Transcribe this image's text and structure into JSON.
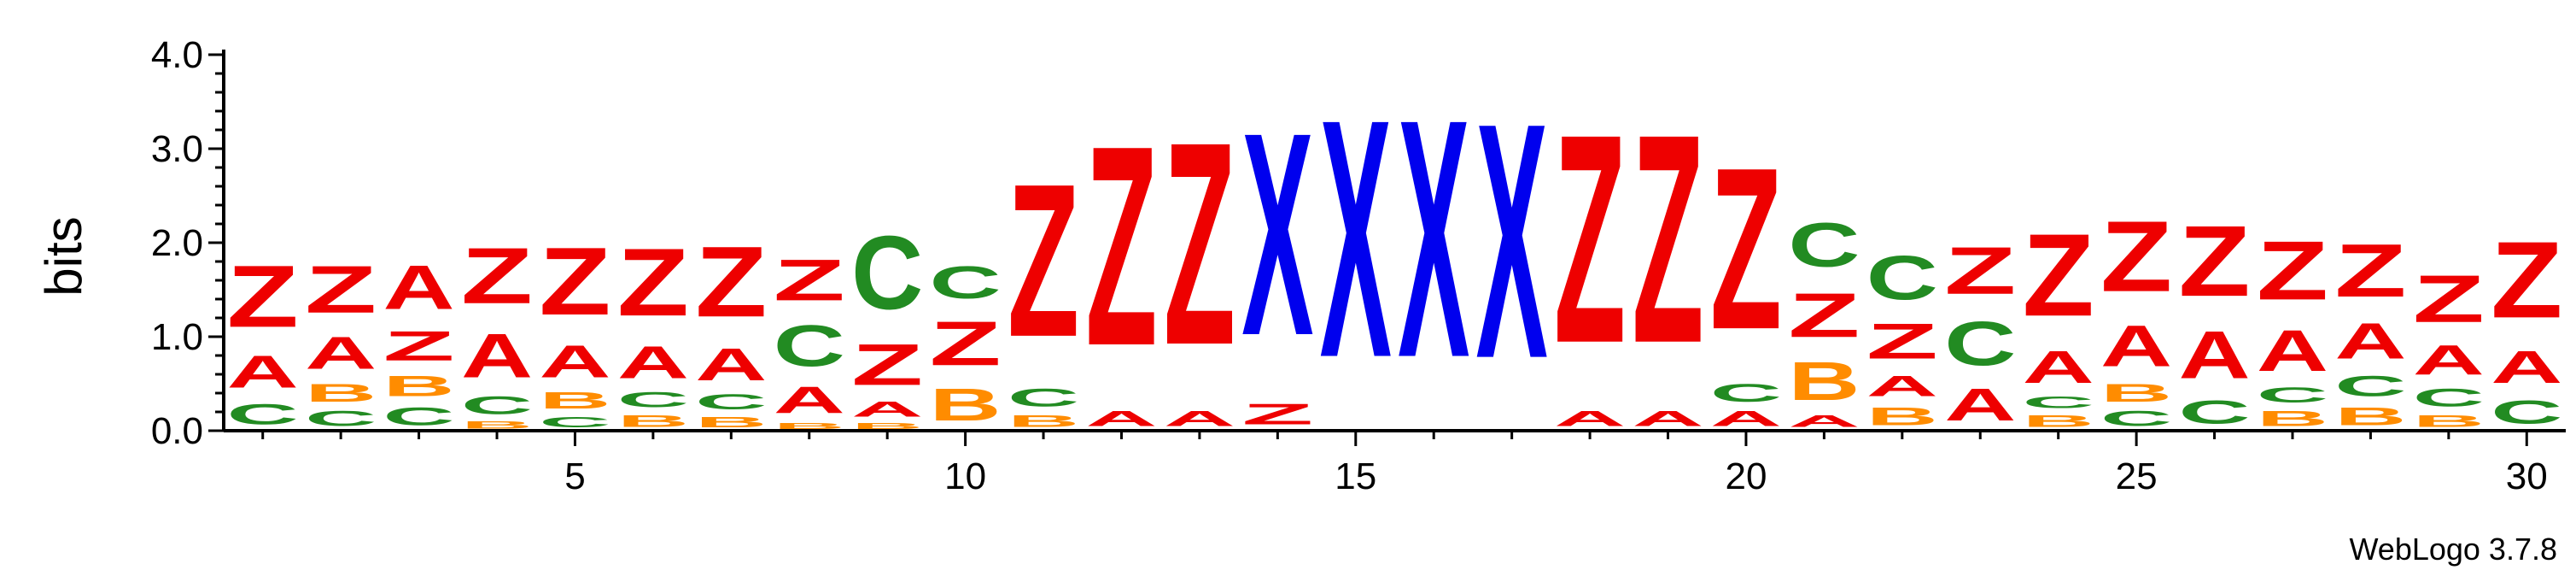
{
  "chart_data": {
    "type": "sequence_logo",
    "ylabel": "bits",
    "ylim": [
      0,
      4.0
    ],
    "y_ticks": [
      "0.0",
      "1.0",
      "2.0",
      "3.0",
      "4.0"
    ],
    "x_ticks": [
      5,
      10,
      15,
      20,
      25,
      30
    ],
    "credit": "WebLogo 3.7.8",
    "colors": {
      "A": "#ee0000",
      "Z": "#ee0000",
      "C": "#228b22",
      "B": "#ff8c00",
      "X": "#0000ee"
    },
    "positions": [
      {
        "pos": 1,
        "letters": [
          [
            "C",
            0.35
          ],
          [
            "A",
            0.55
          ],
          [
            "Z",
            1.05
          ]
        ]
      },
      {
        "pos": 2,
        "letters": [
          [
            "C",
            0.25
          ],
          [
            "B",
            0.3
          ],
          [
            "A",
            0.55
          ],
          [
            "Z",
            0.8
          ]
        ]
      },
      {
        "pos": 3,
        "letters": [
          [
            "C",
            0.3
          ],
          [
            "B",
            0.35
          ],
          [
            "Z",
            0.5
          ],
          [
            "A",
            0.75
          ]
        ]
      },
      {
        "pos": 4,
        "letters": [
          [
            "B",
            0.12
          ],
          [
            "C",
            0.3
          ],
          [
            "A",
            0.75
          ],
          [
            "Z",
            0.95
          ]
        ]
      },
      {
        "pos": 5,
        "letters": [
          [
            "C",
            0.18
          ],
          [
            "B",
            0.28
          ],
          [
            "A",
            0.55
          ],
          [
            "Z",
            1.15
          ]
        ]
      },
      {
        "pos": 6,
        "letters": [
          [
            "B",
            0.2
          ],
          [
            "C",
            0.25
          ],
          [
            "A",
            0.55
          ],
          [
            "Z",
            1.15
          ]
        ]
      },
      {
        "pos": 7,
        "letters": [
          [
            "B",
            0.18
          ],
          [
            "C",
            0.25
          ],
          [
            "A",
            0.55
          ],
          [
            "Z",
            1.2
          ]
        ]
      },
      {
        "pos": 8,
        "letters": [
          [
            "B",
            0.1
          ],
          [
            "A",
            0.45
          ],
          [
            "C",
            0.7
          ],
          [
            "Z",
            0.7
          ]
        ]
      },
      {
        "pos": 9,
        "letters": [
          [
            "B",
            0.1
          ],
          [
            "A",
            0.25
          ],
          [
            "Z",
            0.7
          ],
          [
            "C",
            1.25
          ]
        ]
      },
      {
        "pos": 10,
        "letters": [
          [
            "B",
            0.55
          ],
          [
            "Z",
            0.75
          ],
          [
            "C",
            0.55
          ]
        ]
      },
      {
        "pos": 11,
        "letters": [
          [
            "B",
            0.2
          ],
          [
            "C",
            0.3
          ],
          [
            "Z",
            2.6
          ]
        ]
      },
      {
        "pos": 12,
        "letters": [
          [
            "A",
            0.25
          ],
          [
            "Z",
            3.4
          ]
        ]
      },
      {
        "pos": 13,
        "letters": [
          [
            "A",
            0.25
          ],
          [
            "Z",
            3.45
          ]
        ]
      },
      {
        "pos": 14,
        "letters": [
          [
            "Z",
            0.35
          ],
          [
            "X",
            3.45
          ]
        ]
      },
      {
        "pos": 15,
        "letters": [
          [
            "X",
            4.05
          ]
        ]
      },
      {
        "pos": 16,
        "letters": [
          [
            "X",
            4.05
          ]
        ]
      },
      {
        "pos": 17,
        "letters": [
          [
            "X",
            4.0
          ]
        ]
      },
      {
        "pos": 18,
        "letters": [
          [
            "A",
            0.25
          ],
          [
            "Z",
            3.55
          ]
        ]
      },
      {
        "pos": 19,
        "letters": [
          [
            "A",
            0.25
          ],
          [
            "Z",
            3.55
          ]
        ]
      },
      {
        "pos": 20,
        "letters": [
          [
            "A",
            0.25
          ],
          [
            "C",
            0.3
          ],
          [
            "Z",
            2.75
          ]
        ]
      },
      {
        "pos": 21,
        "letters": [
          [
            "A",
            0.2
          ],
          [
            "B",
            0.65
          ],
          [
            "Z",
            0.75
          ],
          [
            "C",
            0.75
          ]
        ]
      },
      {
        "pos": 22,
        "letters": [
          [
            "B",
            0.3
          ],
          [
            "A",
            0.35
          ],
          [
            "Z",
            0.6
          ],
          [
            "C",
            0.75
          ]
        ]
      },
      {
        "pos": 23,
        "letters": [
          [
            "A",
            0.55
          ],
          [
            "C",
            0.75
          ],
          [
            "Z",
            0.8
          ]
        ]
      },
      {
        "pos": 24,
        "letters": [
          [
            "B",
            0.2
          ],
          [
            "C",
            0.2
          ],
          [
            "A",
            0.55
          ],
          [
            "Z",
            1.4
          ]
        ]
      },
      {
        "pos": 25,
        "letters": [
          [
            "C",
            0.25
          ],
          [
            "B",
            0.3
          ],
          [
            "A",
            0.7
          ],
          [
            "Z",
            1.2
          ]
        ]
      },
      {
        "pos": 26,
        "letters": [
          [
            "C",
            0.4
          ],
          [
            "A",
            0.8
          ],
          [
            "Z",
            1.2
          ]
        ]
      },
      {
        "pos": 27,
        "letters": [
          [
            "B",
            0.25
          ],
          [
            "C",
            0.25
          ],
          [
            "A",
            0.7
          ],
          [
            "Z",
            1.0
          ]
        ]
      },
      {
        "pos": 28,
        "letters": [
          [
            "B",
            0.3
          ],
          [
            "C",
            0.35
          ],
          [
            "A",
            0.6
          ],
          [
            "Z",
            0.9
          ]
        ]
      },
      {
        "pos": 29,
        "letters": [
          [
            "B",
            0.2
          ],
          [
            "C",
            0.3
          ],
          [
            "A",
            0.5
          ],
          [
            "Z",
            0.8
          ]
        ]
      },
      {
        "pos": 30,
        "letters": [
          [
            "C",
            0.4
          ],
          [
            "A",
            0.55
          ],
          [
            "Z",
            1.3
          ]
        ]
      }
    ]
  }
}
